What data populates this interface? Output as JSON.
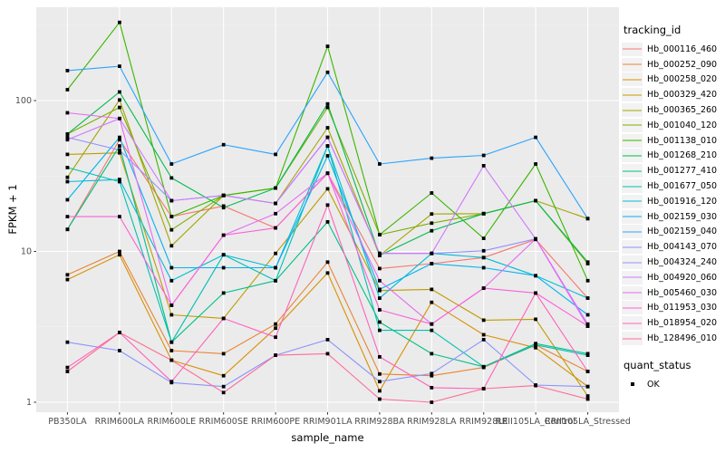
{
  "chart_data": {
    "type": "line",
    "title": "",
    "xlabel": "sample_name",
    "ylabel": "FPKM + 1",
    "y_scale": "log10",
    "y_ticks": [
      1,
      10,
      100
    ],
    "ylim": [
      0.85,
      420
    ],
    "grid": true,
    "panel_background": "#EBEBEB",
    "grid_major_color": "#FFFFFF",
    "grid_minor_color": "#F7F7F7",
    "tick_label_color": "#4D4D4D",
    "point_shape": "filled-square-black",
    "point_color": "#000000",
    "legend_position": "right",
    "categories": [
      "PB350LA",
      "RRIM600LA",
      "RRIM600LE",
      "RRIM600SE",
      "RRIM600PE",
      "RRIM901LA",
      "RRIM928BA",
      "RRIM928LA",
      "RRIM928LE",
      "RRII105LA_Control",
      "RRII105LA_Stressed"
    ],
    "legend": {
      "tracking_title": "tracking_id",
      "quant_title": "quant_status",
      "quant_value": "OK"
    },
    "series": [
      {
        "name": "Hb_000116_460",
        "color": "#F8766D",
        "values": [
          14,
          55,
          17,
          20,
          14.3,
          33,
          7.7,
          8.3,
          9.1,
          12,
          4.9
        ]
      },
      {
        "name": "Hb_000252_090",
        "color": "#EA8331",
        "values": [
          7,
          10,
          2.2,
          2.1,
          3.3,
          8.5,
          1.54,
          1.5,
          1.7,
          2.4,
          1.6
        ]
      },
      {
        "name": "Hb_000258_020",
        "color": "#D89000",
        "values": [
          6.5,
          9.5,
          1.9,
          1.5,
          3.1,
          7.2,
          1.19,
          4.6,
          2.8,
          2.3,
          1.27
        ]
      },
      {
        "name": "Hb_000329_420",
        "color": "#C09B00",
        "values": [
          44,
          45,
          3.8,
          3.6,
          9.7,
          26,
          5.5,
          5.6,
          3.5,
          3.55,
          1.1
        ]
      },
      {
        "name": "Hb_000365_260",
        "color": "#A3A500",
        "values": [
          31,
          101,
          10.9,
          23.5,
          20.8,
          66,
          9.4,
          17.7,
          17.8,
          21.7,
          16.5
        ]
      },
      {
        "name": "Hb_001040_120",
        "color": "#7CAE00",
        "values": [
          60,
          90,
          13.9,
          23.5,
          26.3,
          90,
          12.9,
          15.4,
          17.8,
          21.7,
          8.3
        ]
      },
      {
        "name": "Hb_001138_010",
        "color": "#39B600",
        "values": [
          118,
          330,
          17,
          23.5,
          26.3,
          229,
          12.9,
          24.4,
          12.2,
          38,
          6.4
        ]
      },
      {
        "name": "Hb_001268_210",
        "color": "#00BB4E",
        "values": [
          60,
          114,
          30.7,
          19.5,
          26.3,
          95,
          9.4,
          13.7,
          17.8,
          21.7,
          8.5
        ]
      },
      {
        "name": "Hb_001277_410",
        "color": "#00C087",
        "values": [
          14,
          50,
          2.5,
          5.3,
          6.4,
          15.7,
          3.4,
          2.1,
          1.72,
          2.45,
          2.1
        ]
      },
      {
        "name": "Hb_001677_050",
        "color": "#00C0B3",
        "values": [
          36,
          29,
          2.5,
          9.5,
          6.4,
          50,
          3.0,
          3.0,
          1.72,
          2.4,
          2.05
        ]
      },
      {
        "name": "Hb_001916_120",
        "color": "#00BCD8",
        "values": [
          29,
          30,
          6.4,
          9.5,
          7.8,
          50,
          4.9,
          9.7,
          9.1,
          6.9,
          4.9
        ]
      },
      {
        "name": "Hb_002159_030",
        "color": "#00B3F2",
        "values": [
          22,
          57,
          7.8,
          7.8,
          7.8,
          43,
          5.6,
          8.3,
          7.8,
          6.9,
          3.8
        ]
      },
      {
        "name": "Hb_002159_040",
        "color": "#29A3FF",
        "values": [
          158,
          169,
          38,
          51,
          44,
          154,
          38,
          41.5,
          43.3,
          57,
          16.5
        ]
      },
      {
        "name": "Hb_004143_070",
        "color": "#8B93FF",
        "values": [
          2.5,
          2.2,
          1.35,
          1.27,
          2.05,
          2.6,
          1.37,
          1.55,
          2.6,
          1.3,
          1.27
        ]
      },
      {
        "name": "Hb_004324_240",
        "color": "#9590FF",
        "values": [
          57,
          47,
          21.7,
          23.5,
          20.8,
          57,
          9.7,
          9.7,
          10.1,
          12.1,
          3.2
        ]
      },
      {
        "name": "Hb_004920_060",
        "color": "#CF78FF",
        "values": [
          55,
          76,
          21.7,
          23.5,
          20.8,
          57,
          9.7,
          9.7,
          37,
          12.1,
          3.3
        ]
      },
      {
        "name": "Hb_005460_030",
        "color": "#E76BF3",
        "values": [
          83,
          76,
          4.4,
          12.8,
          17.8,
          33,
          6.4,
          3.3,
          5.7,
          12.1,
          3.2
        ]
      },
      {
        "name": "Hb_011953_030",
        "color": "#FB61D7",
        "values": [
          17,
          17,
          4.4,
          12.8,
          14.3,
          33,
          4.1,
          3.3,
          5.7,
          5.3,
          3.2
        ]
      },
      {
        "name": "Hb_018954_020",
        "color": "#FF62BC",
        "values": [
          1.7,
          2.9,
          1.37,
          3.6,
          2.7,
          20.3,
          2.0,
          1.25,
          1.23,
          5.3,
          1.6
        ]
      },
      {
        "name": "Hb_128496_010",
        "color": "#FF6B96",
        "values": [
          1.6,
          2.9,
          1.9,
          1.16,
          2.05,
          2.1,
          1.05,
          1.0,
          1.23,
          1.29,
          1.05
        ]
      }
    ]
  }
}
